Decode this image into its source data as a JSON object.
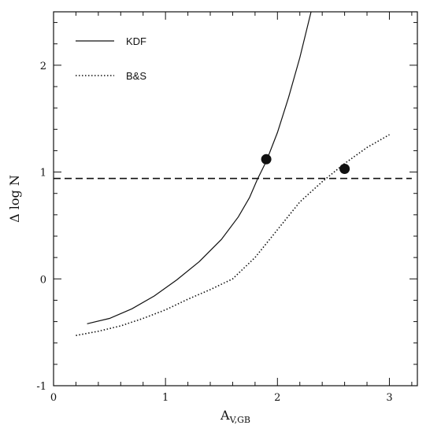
{
  "chart_data": {
    "type": "line",
    "title": "",
    "xlabel_main": "A",
    "xlabel_sub": "V,GB",
    "ylabel": "Δ log N",
    "xlim": [
      0,
      3.25
    ],
    "ylim": [
      -1,
      2.5
    ],
    "x_ticks": [
      0,
      1,
      2,
      3
    ],
    "y_ticks": [
      -1,
      0,
      1,
      2
    ],
    "grid": false,
    "legend_position": "top-left",
    "series": [
      {
        "name": "KDF",
        "style": "solid",
        "color": "#111111",
        "x": [
          0.3,
          0.5,
          0.7,
          0.9,
          1.1,
          1.3,
          1.5,
          1.65,
          1.75,
          1.82,
          1.9,
          2.0,
          2.1,
          2.2,
          2.3
        ],
        "y": [
          -0.42,
          -0.37,
          -0.28,
          -0.16,
          -0.01,
          0.16,
          0.37,
          0.58,
          0.76,
          0.93,
          1.1,
          1.37,
          1.7,
          2.07,
          2.5
        ]
      },
      {
        "name": "B&S",
        "style": "dotted",
        "color": "#111111",
        "x": [
          0.2,
          0.4,
          0.6,
          0.8,
          1.0,
          1.2,
          1.4,
          1.6,
          1.8,
          2.0,
          2.2,
          2.4,
          2.6,
          2.8,
          3.0
        ],
        "y": [
          -0.53,
          -0.49,
          -0.44,
          -0.37,
          -0.29,
          -0.19,
          -0.1,
          0.0,
          0.2,
          0.46,
          0.72,
          0.91,
          1.08,
          1.23,
          1.35
        ]
      }
    ],
    "reference_line": {
      "y": 0.94,
      "style": "dashed",
      "x": [
        0.0,
        3.2
      ]
    },
    "markers": [
      {
        "x": 1.9,
        "y": 1.12
      },
      {
        "x": 2.6,
        "y": 1.03
      }
    ]
  }
}
